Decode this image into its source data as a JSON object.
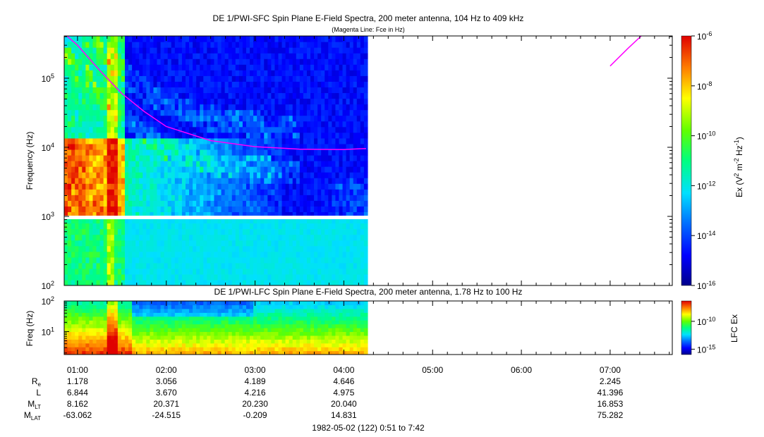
{
  "chart_data": [
    {
      "type": "heatmap",
      "title": "DE 1/PWI-SFC  Spin Plane E-Field Spectra, 200 meter antenna, 104 Hz to 409 kHz",
      "subtitle": "(Magenta Line: Fce in Hz)",
      "ylabel": "Frequency (Hz)",
      "yscale": "log",
      "ylim": [
        100,
        409000
      ],
      "y_ticks": [
        {
          "base": "10",
          "exp": "2"
        },
        {
          "base": "10",
          "exp": "3"
        },
        {
          "base": "10",
          "exp": "4"
        },
        {
          "base": "10",
          "exp": "5"
        }
      ],
      "data_end_time": "04:16",
      "colorbar": {
        "label_main": "Ex (V",
        "label_sup1": "2",
        "label_mid": " m",
        "label_sup2": "-2",
        "label_mid2": " Hz",
        "label_sup3": "-1",
        "label_end": ")",
        "ticks": [
          {
            "base": "10",
            "exp": "-6"
          },
          {
            "base": "10",
            "exp": "-8"
          },
          {
            "base": "10",
            "exp": "-10"
          },
          {
            "base": "10",
            "exp": "-12"
          },
          {
            "base": "10",
            "exp": "-14"
          },
          {
            "base": "10",
            "exp": "-16"
          }
        ],
        "range": [
          -16,
          -6
        ]
      },
      "fce_line": {
        "name": "Fce",
        "color": "#ff00ff",
        "segment_1": {
          "t": [
            0.88,
            1.0,
            1.25,
            1.5,
            1.75,
            2.0,
            2.5,
            3.0,
            3.5,
            4.0,
            4.25
          ],
          "f": [
            409000,
            300000,
            130000,
            60000,
            33000,
            20000,
            12500,
            10200,
            9400,
            9300,
            9600
          ]
        },
        "segment_2": {
          "t": [
            7.0,
            7.2,
            7.35
          ],
          "f": [
            150000,
            270000,
            409000
          ]
        }
      }
    },
    {
      "type": "heatmap",
      "title": "DE 1/PWI-LFC  Spin Plane E-Field Spectra, 200 meter antenna, 1.78 Hz to 100 Hz",
      "ylabel": "Freq (Hz)",
      "yscale": "log",
      "ylim": [
        1.78,
        100
      ],
      "y_ticks": [
        {
          "base": "10",
          "exp": "1"
        },
        {
          "base": "10",
          "exp": "2"
        }
      ],
      "colorbar": {
        "label": "LFC Ex",
        "ticks": [
          {
            "base": "10",
            "exp": "-10"
          },
          {
            "base": "10",
            "exp": "-15"
          }
        ]
      }
    }
  ],
  "time_axis": {
    "ticks": [
      "01:00",
      "02:00",
      "03:00",
      "04:00",
      "05:00",
      "06:00",
      "07:00"
    ],
    "xlim": [
      "0:51",
      "7:42"
    ]
  },
  "ephemeris": {
    "rows": [
      {
        "label": "R",
        "sub": "e",
        "values": [
          "1.178",
          "3.056",
          "4.189",
          "4.646",
          "",
          "",
          "2.245"
        ]
      },
      {
        "label": "L",
        "sub": "",
        "values": [
          "6.844",
          "3.670",
          "4.216",
          "4.975",
          "",
          "",
          "41.396"
        ]
      },
      {
        "label": "M",
        "sub": "LT",
        "values": [
          "8.162",
          "20.371",
          "20.230",
          "20.040",
          "",
          "",
          "16.853"
        ]
      },
      {
        "label": "M",
        "sub": "LAT",
        "values": [
          "-63.062",
          "-24.515",
          "-0.209",
          "14.831",
          "",
          "",
          "75.282"
        ]
      }
    ]
  },
  "footer": "1982-05-02 (122) 0:51 to 7:42"
}
